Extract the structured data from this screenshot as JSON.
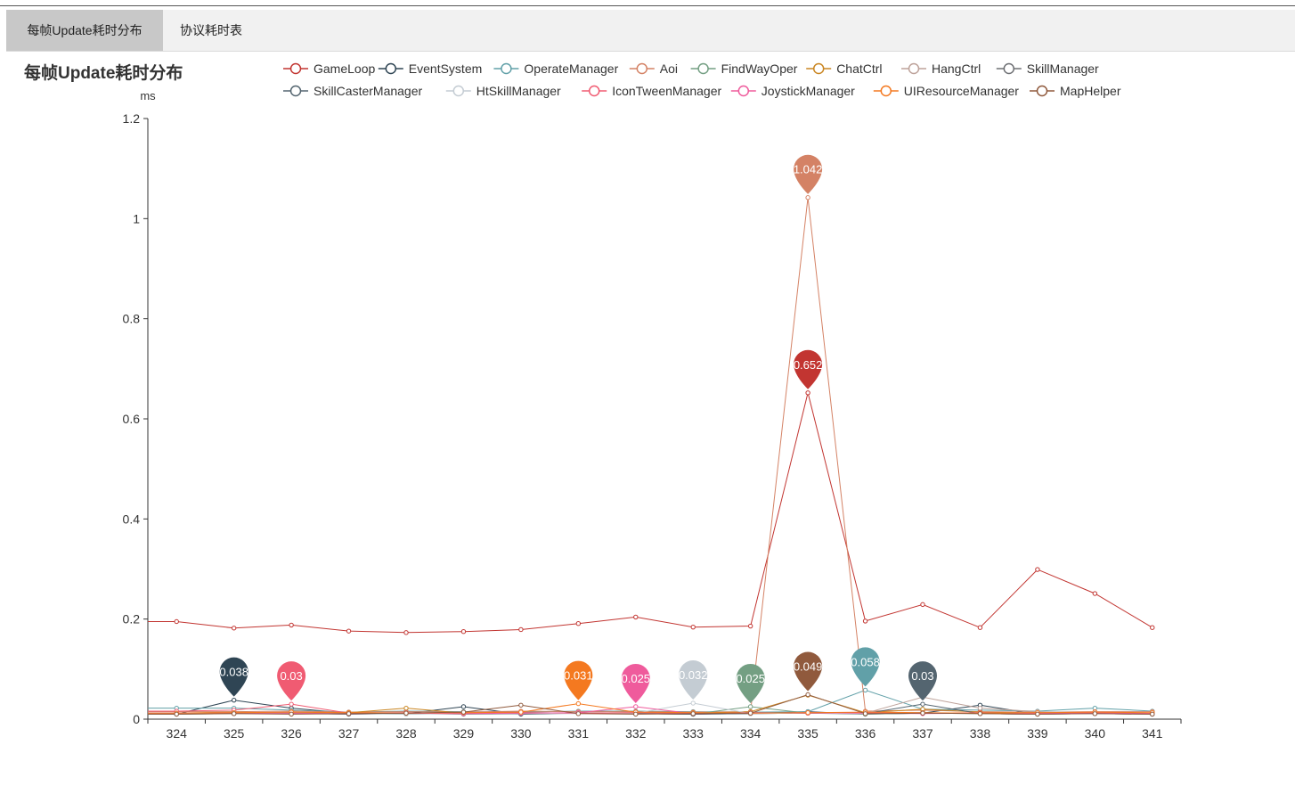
{
  "tabs": [
    {
      "label": "每帧Update耗时分布",
      "active": true
    },
    {
      "label": "协议耗时表",
      "active": false
    }
  ],
  "chart_data": {
    "type": "line",
    "title": "每帧Update耗时分布",
    "ylabel": "ms",
    "ylim": [
      0,
      1.2
    ],
    "yticks": [
      0,
      0.2,
      0.4,
      0.6,
      0.8,
      1,
      1.2
    ],
    "ytick_labels": [
      "0",
      "0.2",
      "0.4",
      "0.6",
      "0.8",
      "1",
      "1.2"
    ],
    "legend_position": "top",
    "categories": [
      "324",
      "325",
      "326",
      "327",
      "328",
      "329",
      "330",
      "331",
      "332",
      "333",
      "334",
      "335",
      "336",
      "337",
      "338",
      "339",
      "340",
      "341"
    ],
    "series": [
      {
        "name": "GameLoop",
        "color": "#c23531",
        "values": [
          0.195,
          0.182,
          0.188,
          0.176,
          0.173,
          0.175,
          0.179,
          0.191,
          0.204,
          0.184,
          0.186,
          0.652,
          0.196,
          0.229,
          0.183,
          0.299,
          0.251,
          0.183
        ],
        "max_label": "0.652"
      },
      {
        "name": "EventSystem",
        "color": "#2f4554",
        "values": [
          0.01,
          0.038,
          0.022,
          0.012,
          0.011,
          0.025,
          0.01,
          0.012,
          0.011,
          0.01,
          0.012,
          0.015,
          0.01,
          0.012,
          0.028,
          0.01,
          0.012,
          0.01
        ],
        "max_label": "0.038"
      },
      {
        "name": "OperateManager",
        "color": "#61a0a8",
        "values": [
          0.022,
          0.022,
          0.018,
          0.014,
          0.016,
          0.015,
          0.014,
          0.016,
          0.016,
          0.015,
          0.014,
          0.015,
          0.058,
          0.02,
          0.018,
          0.016,
          0.022,
          0.016
        ],
        "max_label": "0.058"
      },
      {
        "name": "Aoi",
        "color": "#d48265",
        "values": [
          0.015,
          0.015,
          0.016,
          0.014,
          0.015,
          0.014,
          0.016,
          0.015,
          0.015,
          0.014,
          0.015,
          1.042,
          0.016,
          0.018,
          0.015,
          0.014,
          0.015,
          0.015
        ],
        "max_label": "1.042"
      },
      {
        "name": "FindWayOper",
        "color": "#749f83",
        "values": [
          0.01,
          0.012,
          0.013,
          0.011,
          0.01,
          0.012,
          0.011,
          0.012,
          0.011,
          0.01,
          0.025,
          0.012,
          0.01,
          0.012,
          0.011,
          0.01,
          0.012,
          0.011
        ],
        "max_label": "0.025"
      },
      {
        "name": "ChatCtrl",
        "color": "#ca8622",
        "values": [
          0.012,
          0.014,
          0.012,
          0.013,
          0.022,
          0.012,
          0.013,
          0.012,
          0.013,
          0.012,
          0.015,
          0.048,
          0.013,
          0.02,
          0.014,
          0.012,
          0.013,
          0.012
        ],
        "max_label": ""
      },
      {
        "name": "HangCtrl",
        "color": "#bda29a",
        "values": [
          0.012,
          0.013,
          0.012,
          0.011,
          0.012,
          0.011,
          0.012,
          0.013,
          0.012,
          0.011,
          0.012,
          0.013,
          0.012,
          0.044,
          0.022,
          0.015,
          0.013,
          0.012
        ],
        "max_label": ""
      },
      {
        "name": "SkillManager",
        "color": "#6e7074",
        "values": [
          0.01,
          0.011,
          0.012,
          0.01,
          0.011,
          0.01,
          0.011,
          0.012,
          0.011,
          0.01,
          0.011,
          0.012,
          0.011,
          0.013,
          0.011,
          0.01,
          0.011,
          0.01
        ],
        "max_label": ""
      },
      {
        "name": "SkillCasterManager",
        "color": "#546570",
        "values": [
          0.011,
          0.012,
          0.011,
          0.01,
          0.011,
          0.012,
          0.011,
          0.012,
          0.011,
          0.01,
          0.011,
          0.012,
          0.011,
          0.03,
          0.011,
          0.01,
          0.011,
          0.01
        ],
        "max_label": "0.03"
      },
      {
        "name": "HtSkillManager",
        "color": "#c4ccd3",
        "values": [
          0.01,
          0.011,
          0.012,
          0.011,
          0.01,
          0.011,
          0.012,
          0.011,
          0.012,
          0.032,
          0.011,
          0.012,
          0.011,
          0.012,
          0.011,
          0.01,
          0.011,
          0.01
        ],
        "max_label": "0.032"
      },
      {
        "name": "IconTweenManager",
        "color": "#f05b72",
        "values": [
          0.016,
          0.018,
          0.03,
          0.012,
          0.013,
          0.012,
          0.013,
          0.012,
          0.013,
          0.012,
          0.013,
          0.012,
          0.013,
          0.012,
          0.013,
          0.012,
          0.013,
          0.012
        ],
        "max_label": "0.03"
      },
      {
        "name": "JoystickManager",
        "color": "#ef5b9c",
        "values": [
          0.012,
          0.013,
          0.012,
          0.011,
          0.012,
          0.011,
          0.012,
          0.013,
          0.025,
          0.011,
          0.012,
          0.013,
          0.012,
          0.011,
          0.012,
          0.011,
          0.012,
          0.011
        ],
        "max_label": "0.025"
      },
      {
        "name": "UIResourceManager",
        "color": "#f47920",
        "values": [
          0.012,
          0.013,
          0.014,
          0.013,
          0.012,
          0.013,
          0.014,
          0.031,
          0.014,
          0.013,
          0.012,
          0.013,
          0.014,
          0.013,
          0.012,
          0.013,
          0.014,
          0.013
        ],
        "max_label": "0.031"
      },
      {
        "name": "MapHelper",
        "color": "#905a3d",
        "values": [
          0.01,
          0.011,
          0.01,
          0.011,
          0.012,
          0.014,
          0.028,
          0.011,
          0.01,
          0.011,
          0.012,
          0.049,
          0.011,
          0.012,
          0.011,
          0.01,
          0.011,
          0.01
        ],
        "max_label": "0.049"
      }
    ]
  }
}
